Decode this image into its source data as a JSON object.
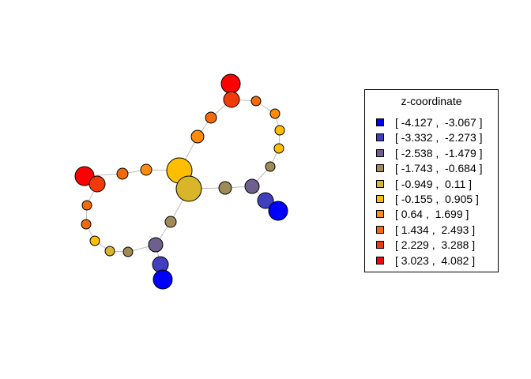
{
  "legend": {
    "title": "z-coordinate",
    "entries": [
      {
        "label": "[ -4.127 ,  -3.067 ]",
        "color": "#0000FF"
      },
      {
        "label": "[ -3.332 ,  -2.273 ]",
        "color": "#3F3FC0"
      },
      {
        "label": "[ -2.538 ,  -1.479 ]",
        "color": "#6E5F8F"
      },
      {
        "label": "[ -1.743 ,  -0.684 ]",
        "color": "#A08A55"
      },
      {
        "label": "[ -0.949 ,  0.11 ]",
        "color": "#D9B52A"
      },
      {
        "label": "[ -0.155 ,  0.905 ]",
        "color": "#FFBF00"
      },
      {
        "label": "[ 0.64 ,  1.699 ]",
        "color": "#FF8C0A"
      },
      {
        "label": "[ 1.434 ,  2.493 ]",
        "color": "#F26A0A"
      },
      {
        "label": "[ 2.229 ,  3.288 ]",
        "color": "#F03A0A"
      },
      {
        "label": "[ 3.023 ,  4.082 ]",
        "color": "#FF0000"
      }
    ]
  },
  "graph": {
    "edge_color": "#BEBEBE",
    "node_stroke": "#000000"
  }
}
